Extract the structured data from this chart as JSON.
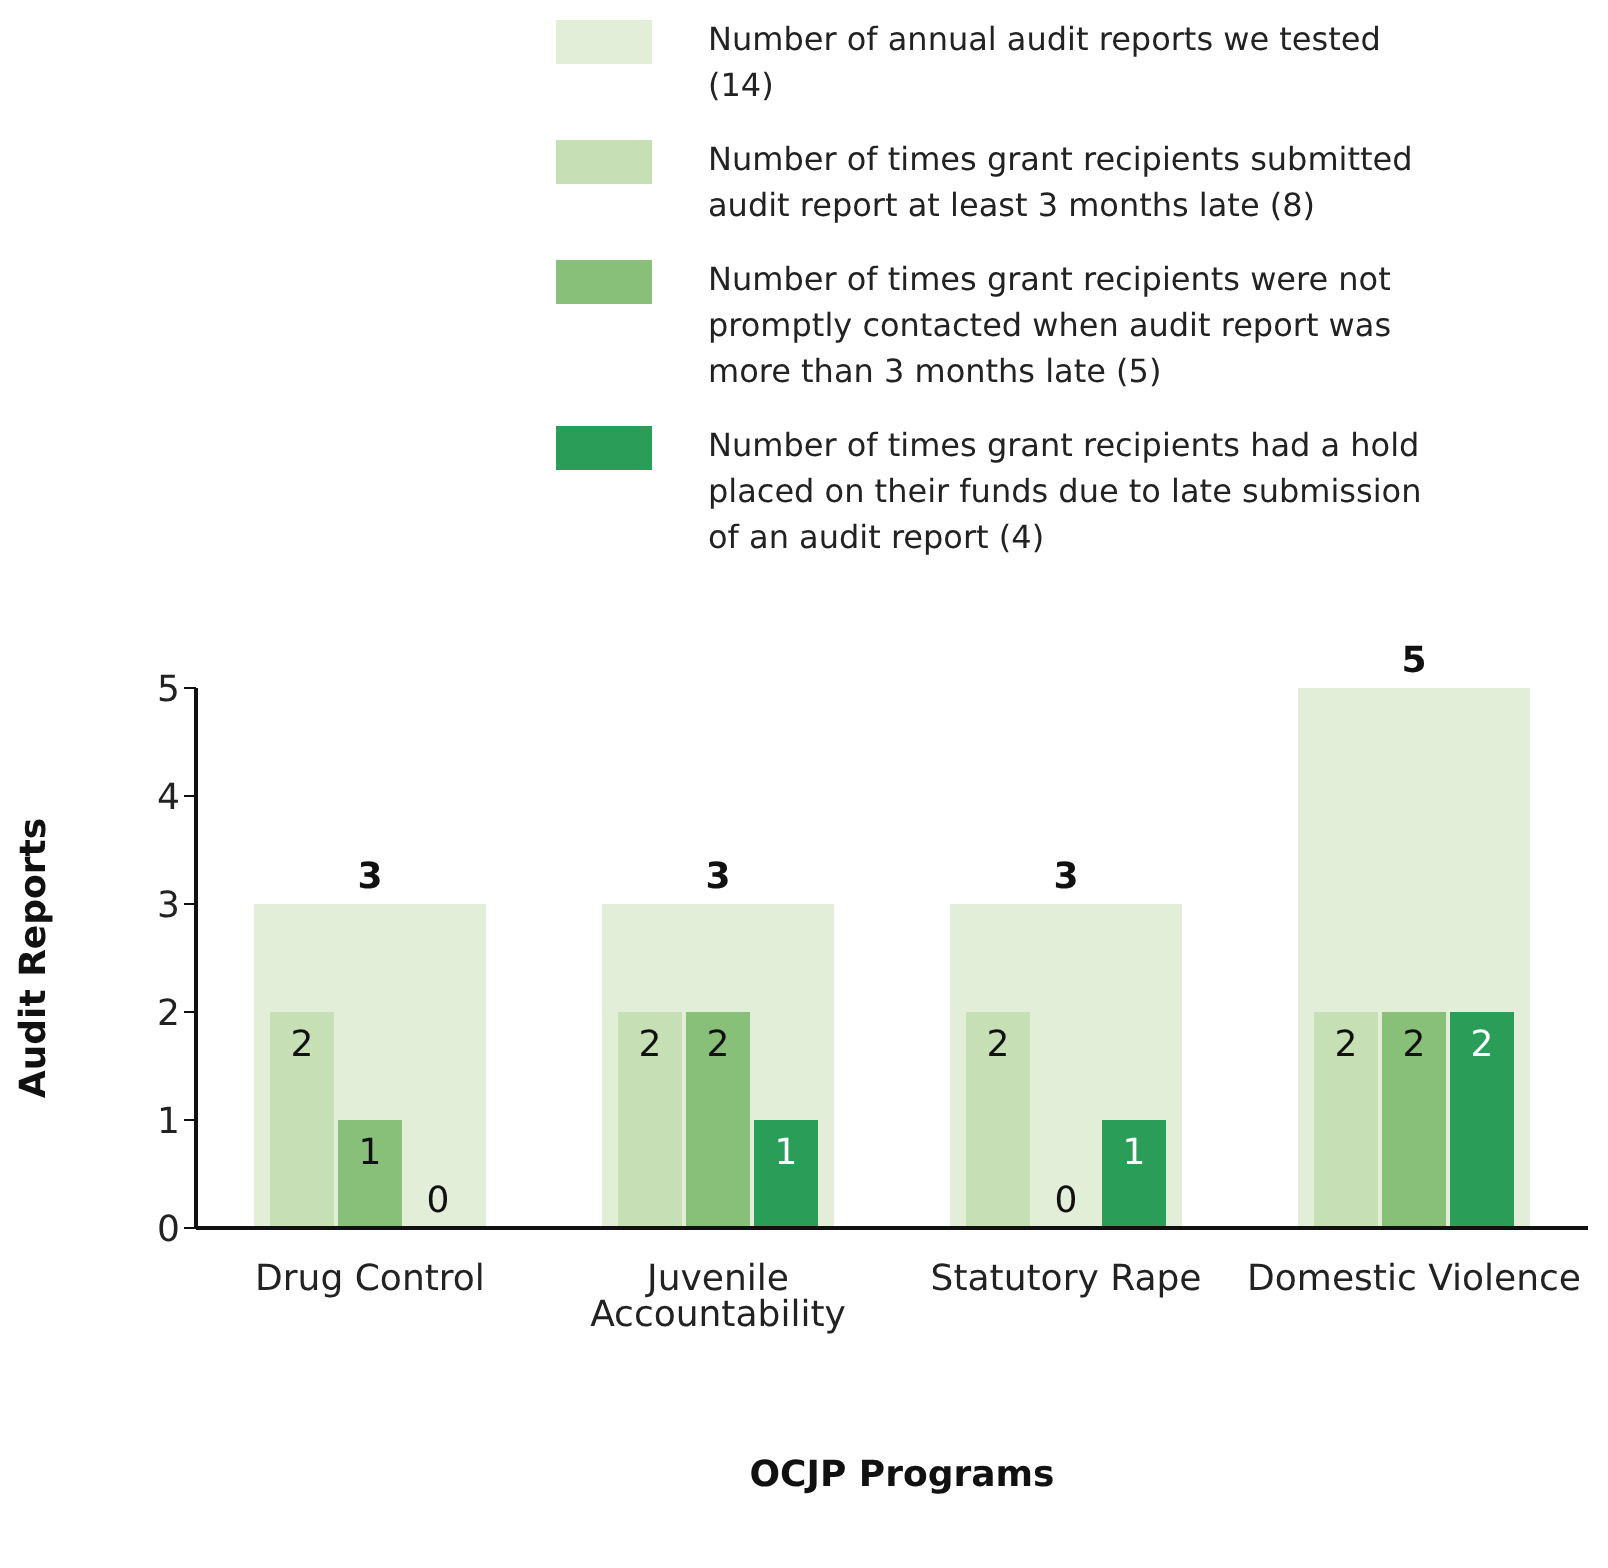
{
  "chart_data": {
    "type": "bar",
    "xlabel": "OCJP Programs",
    "ylabel": "Audit Reports",
    "categories": [
      "Drug Control",
      "Juvenile Accountability",
      "Statutory Rape",
      "Domestic Violence"
    ],
    "series": [
      {
        "name": "Number of annual audit reports we tested (14)",
        "color": "#e3eed8",
        "values": [
          3,
          3,
          3,
          5
        ]
      },
      {
        "name": "Number of times grant recipients submitted audit report at least 3 months late (8)",
        "color": "#c6dfb4",
        "values": [
          2,
          2,
          2,
          2
        ]
      },
      {
        "name": "Number of times grant recipients were not promptly contacted when audit report was more than 3 months late (5)",
        "color": "#88c07a",
        "values": [
          1,
          2,
          0,
          2
        ]
      },
      {
        "name": "Number of times grant recipients had a hold placed on their funds due to late submission of an audit report (4)",
        "color": "#2a9e58",
        "values": [
          0,
          1,
          1,
          2
        ]
      }
    ],
    "ylim": [
      0,
      5
    ],
    "yticks": [
      0,
      1,
      2,
      3,
      4,
      5
    ],
    "legend": "top",
    "data_labels": true
  }
}
